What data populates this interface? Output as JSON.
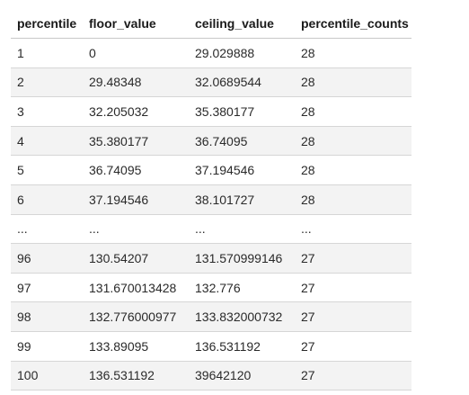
{
  "table": {
    "columns": [
      "percentile",
      "floor_value",
      "ceiling_value",
      "percentile_counts"
    ],
    "rows": [
      [
        "1",
        "0",
        "29.029888",
        "28"
      ],
      [
        "2",
        "29.48348",
        "32.0689544",
        "28"
      ],
      [
        "3",
        "32.205032",
        "35.380177",
        "28"
      ],
      [
        "4",
        "35.380177",
        "36.74095",
        "28"
      ],
      [
        "5",
        "36.74095",
        "37.194546",
        "28"
      ],
      [
        "6",
        "37.194546",
        "38.101727",
        "28"
      ],
      [
        "...",
        "...",
        "...",
        "..."
      ],
      [
        "96",
        "130.54207",
        "131.570999146",
        "27"
      ],
      [
        "97",
        "131.670013428",
        "132.776",
        "27"
      ],
      [
        "98",
        "132.776000977",
        "133.832000732",
        "27"
      ],
      [
        "99",
        "133.89095",
        "136.531192",
        "27"
      ],
      [
        "100",
        "136.531192",
        "39642120",
        "27"
      ]
    ]
  }
}
